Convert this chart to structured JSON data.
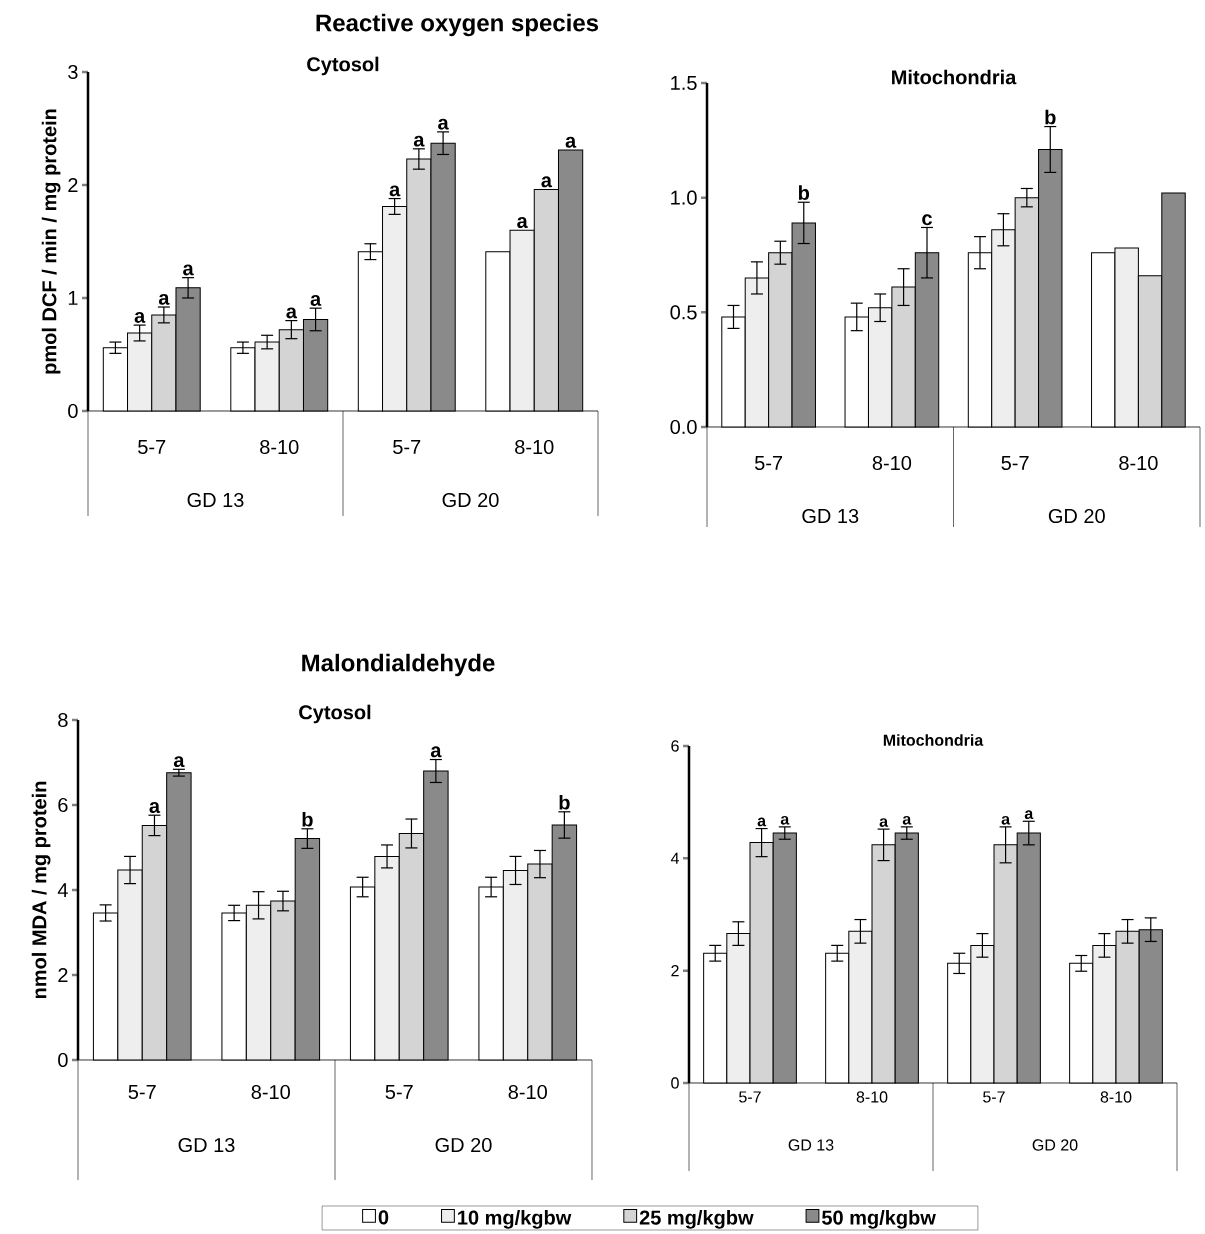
{
  "chart_data": [
    {
      "type": "bar",
      "title": "Cytosol",
      "ylabel": "pmol DCF / min / mg protein",
      "annotations": [
        "Reactive oxygen species",
        "GD 13",
        "GD 20"
      ],
      "categories": [
        "5-7",
        "8-10",
        "5-7",
        "8-10"
      ],
      "ylim": [
        0,
        3
      ],
      "yticks": [
        0,
        1,
        2,
        3
      ],
      "series": [
        {
          "color": "#ffffff",
          "values": [
            0.56,
            0.56,
            1.41,
            1.41
          ],
          "errors": [
            0.05,
            0.05,
            0.07,
            null
          ]
        },
        {
          "color": "#eeeeee",
          "values": [
            0.69,
            0.61,
            1.81,
            1.6
          ],
          "errors": [
            0.07,
            0.06,
            0.07,
            null
          ],
          "value_labels": [
            "a",
            null,
            "a",
            "a"
          ]
        },
        {
          "color": "#d4d4d4",
          "values": [
            0.85,
            0.72,
            2.23,
            1.96
          ],
          "errors": [
            0.07,
            0.08,
            0.09,
            null
          ],
          "value_labels": [
            "a",
            "a",
            "a",
            "a"
          ]
        },
        {
          "color": "#8a8a8a",
          "values": [
            1.09,
            0.81,
            2.37,
            2.31
          ],
          "errors": [
            0.09,
            0.1,
            0.1,
            null
          ],
          "value_labels": [
            "a",
            "a",
            "a",
            "a"
          ]
        }
      ]
    },
    {
      "type": "bar",
      "title": "Mitochondria",
      "annotations": [
        "GD 13",
        "GD 20"
      ],
      "categories": [
        "5-7",
        "8-10",
        "5-7",
        "8-10"
      ],
      "ylim": [
        0,
        1.5
      ],
      "yticks": [
        {
          "value": 0,
          "label": "0.0"
        },
        {
          "value": 0.5,
          "label": "0.5"
        },
        {
          "value": 1,
          "label": "1.0"
        },
        {
          "value": 1.5,
          "label": "1.5"
        }
      ],
      "series": [
        {
          "color": "#ffffff",
          "values": [
            0.48,
            0.48,
            0.76,
            0.76
          ],
          "errors": [
            0.05,
            0.06,
            0.07,
            null
          ]
        },
        {
          "color": "#eeeeee",
          "values": [
            0.65,
            0.52,
            0.86,
            0.78
          ],
          "errors": [
            0.07,
            0.06,
            0.07,
            null
          ]
        },
        {
          "color": "#d4d4d4",
          "values": [
            0.76,
            0.61,
            1.0,
            0.66
          ],
          "errors": [
            0.05,
            0.08,
            0.04,
            null
          ]
        },
        {
          "color": "#8a8a8a",
          "values": [
            0.89,
            0.76,
            1.21,
            1.02
          ],
          "errors": [
            0.09,
            0.11,
            0.1,
            null
          ],
          "value_labels": [
            "b",
            "c",
            "b",
            null
          ]
        }
      ]
    },
    {
      "type": "bar",
      "title": "Cytosol",
      "ylabel": "nmol MDA / mg protein",
      "annotations": [
        "Malondialdehyde",
        "GD 13",
        "GD 20"
      ],
      "categories": [
        "5-7",
        "8-10",
        "5-7",
        "8-10"
      ],
      "ylim": [
        0,
        8
      ],
      "yticks": [
        0,
        2,
        4,
        6,
        8
      ],
      "series": [
        {
          "color": "#ffffff",
          "values": [
            3.46,
            3.46,
            4.07,
            4.07
          ],
          "errors": [
            0.19,
            0.18,
            0.23,
            0.23
          ]
        },
        {
          "color": "#eeeeee",
          "values": [
            4.47,
            3.64,
            4.79,
            4.46
          ],
          "errors": [
            0.32,
            0.32,
            0.27,
            0.33
          ]
        },
        {
          "color": "#d4d4d4",
          "values": [
            5.52,
            3.74,
            5.33,
            4.61
          ],
          "errors": [
            0.24,
            0.23,
            0.34,
            0.32
          ],
          "value_labels": [
            "a",
            null,
            null,
            null
          ]
        },
        {
          "color": "#8a8a8a",
          "values": [
            6.76,
            5.21,
            6.8,
            5.53
          ],
          "errors": [
            0.08,
            0.23,
            0.27,
            0.31
          ],
          "value_labels": [
            "a",
            "b",
            "a",
            "b"
          ]
        }
      ]
    },
    {
      "type": "bar",
      "title": "Mitochondria",
      "annotations": [
        "GD 13",
        "GD 20"
      ],
      "legend": "bottom",
      "categories": [
        "5-7",
        "8-10",
        "5-7",
        "8-10"
      ],
      "ylim": [
        0,
        6
      ],
      "yticks": [
        0,
        2,
        4,
        6
      ],
      "series": [
        {
          "name": "0",
          "color": "#ffffff",
          "values": [
            2.31,
            2.31,
            2.13,
            2.13
          ],
          "errors": [
            0.14,
            0.14,
            0.18,
            0.14
          ]
        },
        {
          "name": "10 mg/kgbw",
          "color": "#eeeeee",
          "values": [
            2.66,
            2.7,
            2.45,
            2.45
          ],
          "errors": [
            0.21,
            0.21,
            0.21,
            0.21
          ]
        },
        {
          "name": "25 mg/kgbw",
          "color": "#d4d4d4",
          "values": [
            4.28,
            4.24,
            4.24,
            2.7
          ],
          "errors": [
            0.25,
            0.28,
            0.32,
            0.21
          ],
          "value_labels": [
            "a",
            "a",
            "a",
            null
          ]
        },
        {
          "name": "50 mg/kgbw",
          "color": "#8a8a8a",
          "values": [
            4.45,
            4.45,
            4.45,
            2.73
          ],
          "errors": [
            0.11,
            0.11,
            0.21,
            0.21
          ],
          "value_labels": [
            "a",
            "a",
            "a",
            null
          ]
        }
      ]
    }
  ]
}
